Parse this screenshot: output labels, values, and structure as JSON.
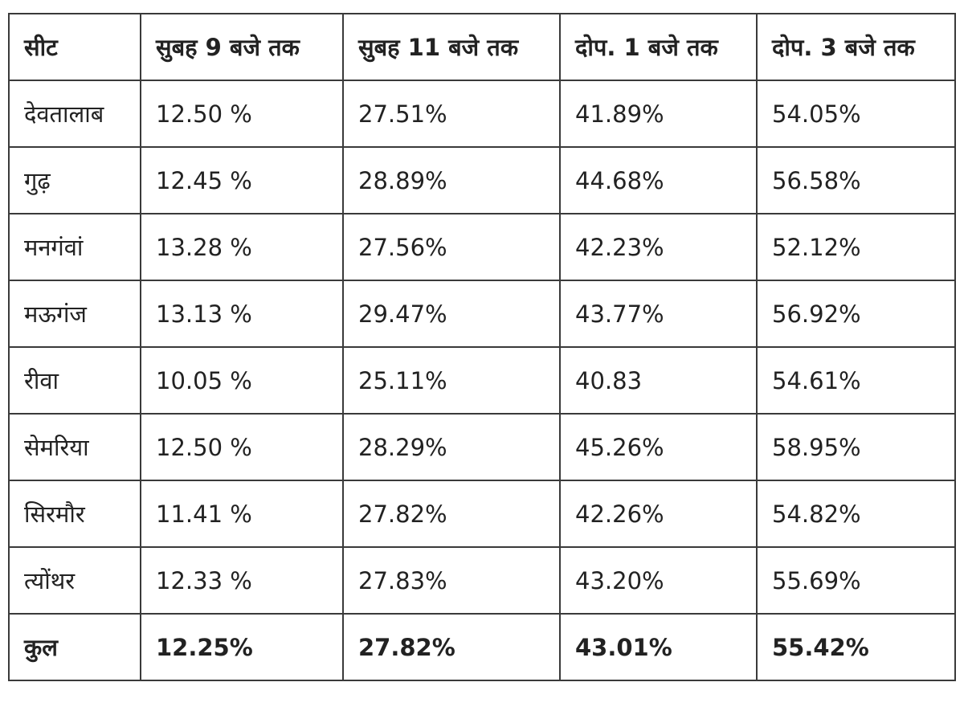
{
  "table": {
    "headers": [
      "सीट",
      "सुबह 9 बजे तक",
      "सुबह 11 बजे तक",
      "दोप. 1 बजे तक",
      "दोप. 3 बजे तक"
    ],
    "rows": [
      [
        "देवतालाब",
        "12.50 %",
        "27.51%",
        "41.89%",
        "54.05%"
      ],
      [
        "गुढ़",
        "12.45 %",
        "28.89%",
        "44.68%",
        "56.58%"
      ],
      [
        "मनगंवां",
        "13.28 %",
        "27.56%",
        "42.23%",
        "52.12%"
      ],
      [
        "मऊगंज",
        "13.13 %",
        "29.47%",
        "43.77%",
        "56.92%"
      ],
      [
        "रीवा",
        "10.05 %",
        "25.11%",
        "40.83",
        "54.61%"
      ],
      [
        "सेमरिया",
        "12.50 %",
        "28.29%",
        "45.26%",
        "58.95%"
      ],
      [
        "सिरमौर",
        "11.41 %",
        "27.82%",
        "42.26%",
        "54.82%"
      ],
      [
        "त्योंथर",
        "12.33 %",
        "27.83%",
        "43.20%",
        "55.69%"
      ]
    ],
    "total": [
      "कुल",
      "12.25%",
      "27.82%",
      "43.01%",
      "55.42%"
    ]
  }
}
